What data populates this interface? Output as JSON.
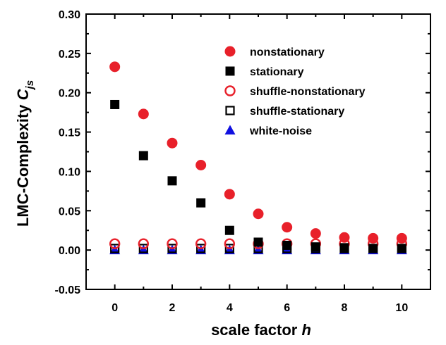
{
  "chart_data": {
    "type": "scatter",
    "title": "",
    "xlabel_main": "scale factor ",
    "xlabel_symbol": "h",
    "ylabel_main": "LMC-Complexity  ",
    "ylabel_symbol": "C",
    "ylabel_subscript": "js",
    "xlim": [
      -1,
      11
    ],
    "ylim": [
      -0.05,
      0.3
    ],
    "xticks": [
      0,
      2,
      4,
      6,
      8,
      10
    ],
    "yticks": [
      -0.05,
      0.0,
      0.05,
      0.1,
      0.15,
      0.2,
      0.25,
      0.3
    ],
    "ytick_labels": [
      "-0.05",
      "0.00",
      "0.05",
      "0.10",
      "0.15",
      "0.20",
      "0.25",
      "0.30"
    ],
    "grid": false,
    "legend_position": "top-right",
    "series": [
      {
        "name": "nonstationary",
        "marker": "circle-filled",
        "color": "#e8202a",
        "x": [
          0,
          1,
          2,
          3,
          4,
          5,
          6,
          7,
          8,
          9,
          10
        ],
        "y": [
          0.233,
          0.173,
          0.136,
          0.108,
          0.071,
          0.046,
          0.029,
          0.021,
          0.016,
          0.015,
          0.015
        ]
      },
      {
        "name": "stationary",
        "marker": "square-filled",
        "color": "#000000",
        "x": [
          0,
          1,
          2,
          3,
          4,
          5,
          6,
          7,
          8,
          9,
          10
        ],
        "y": [
          0.185,
          0.12,
          0.088,
          0.06,
          0.025,
          0.01,
          0.006,
          0.004,
          0.003,
          0.002,
          0.002
        ]
      },
      {
        "name": "shuffle-nonstationary",
        "marker": "circle-open",
        "color": "#e8202a",
        "x": [
          0,
          1,
          2,
          3,
          4,
          5,
          6,
          7,
          8,
          9,
          10
        ],
        "y": [
          0.008,
          0.008,
          0.008,
          0.008,
          0.008,
          0.008,
          0.008,
          0.008,
          0.008,
          0.008,
          0.008
        ]
      },
      {
        "name": "shuffle-stationary",
        "marker": "square-open",
        "color": "#000000",
        "x": [
          0,
          1,
          2,
          3,
          4,
          5,
          6,
          7,
          8,
          9,
          10
        ],
        "y": [
          0.002,
          0.002,
          0.002,
          0.002,
          0.002,
          0.002,
          0.002,
          0.002,
          0.002,
          0.002,
          0.002
        ]
      },
      {
        "name": "white-noise",
        "marker": "triangle-filled",
        "color": "#1010e0",
        "x": [
          0,
          1,
          2,
          3,
          4,
          5,
          6,
          7,
          8,
          9,
          10
        ],
        "y": [
          0.0,
          0.0,
          0.0,
          0.0,
          0.0,
          0.0,
          0.0,
          0.0,
          0.0,
          0.0,
          0.0
        ]
      }
    ]
  }
}
